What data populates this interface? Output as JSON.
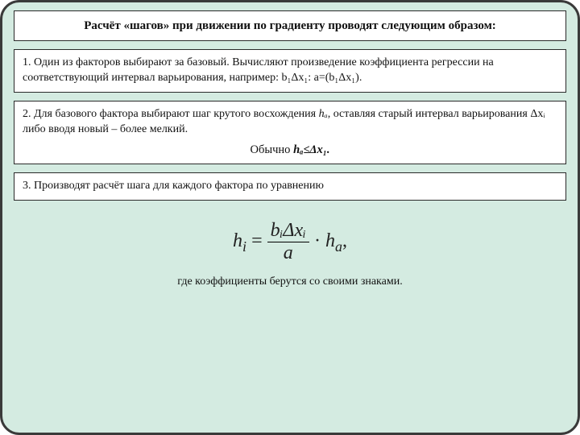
{
  "background_color": "#d4ebe1",
  "border_color": "#3a3a3a",
  "box_bg": "#ffffff",
  "box_border": "#2a2a2a",
  "title": "Расчёт «шагов» при движении по градиенту проводят следующим образом:",
  "step1_text": "1. Один из факторов выбирают за базовый. Вычисляют произведение коэффициента регрессии на соответствующий интервал варьирования, например:",
  "step1_formula": "b₁Δx₁: a=(b₁Δx₁).",
  "step2_text_a": "2. Для базового фактора выбирают шаг крутого восхождения ",
  "step2_ha": "hₐ",
  "step2_text_b": ", оставляя старый интервал варьирования Δxᵢ либо вводя новый – более мелкий.",
  "step2_center_label": "Обычно ",
  "step2_center_formula": "hₐ≤Δx₁.",
  "step3_text": "3. Производят расчёт шага для каждого фактора по уравнению",
  "equation": {
    "lhs_var": "h",
    "lhs_sub": "i",
    "num": "bᵢΔxᵢ",
    "den": "a",
    "rhs_var": "h",
    "rhs_sub": "a",
    "tail": ","
  },
  "footer": "где коэффициенты берутся со своими знаками.",
  "eq_fontsize": 24,
  "eq_color": "#222"
}
